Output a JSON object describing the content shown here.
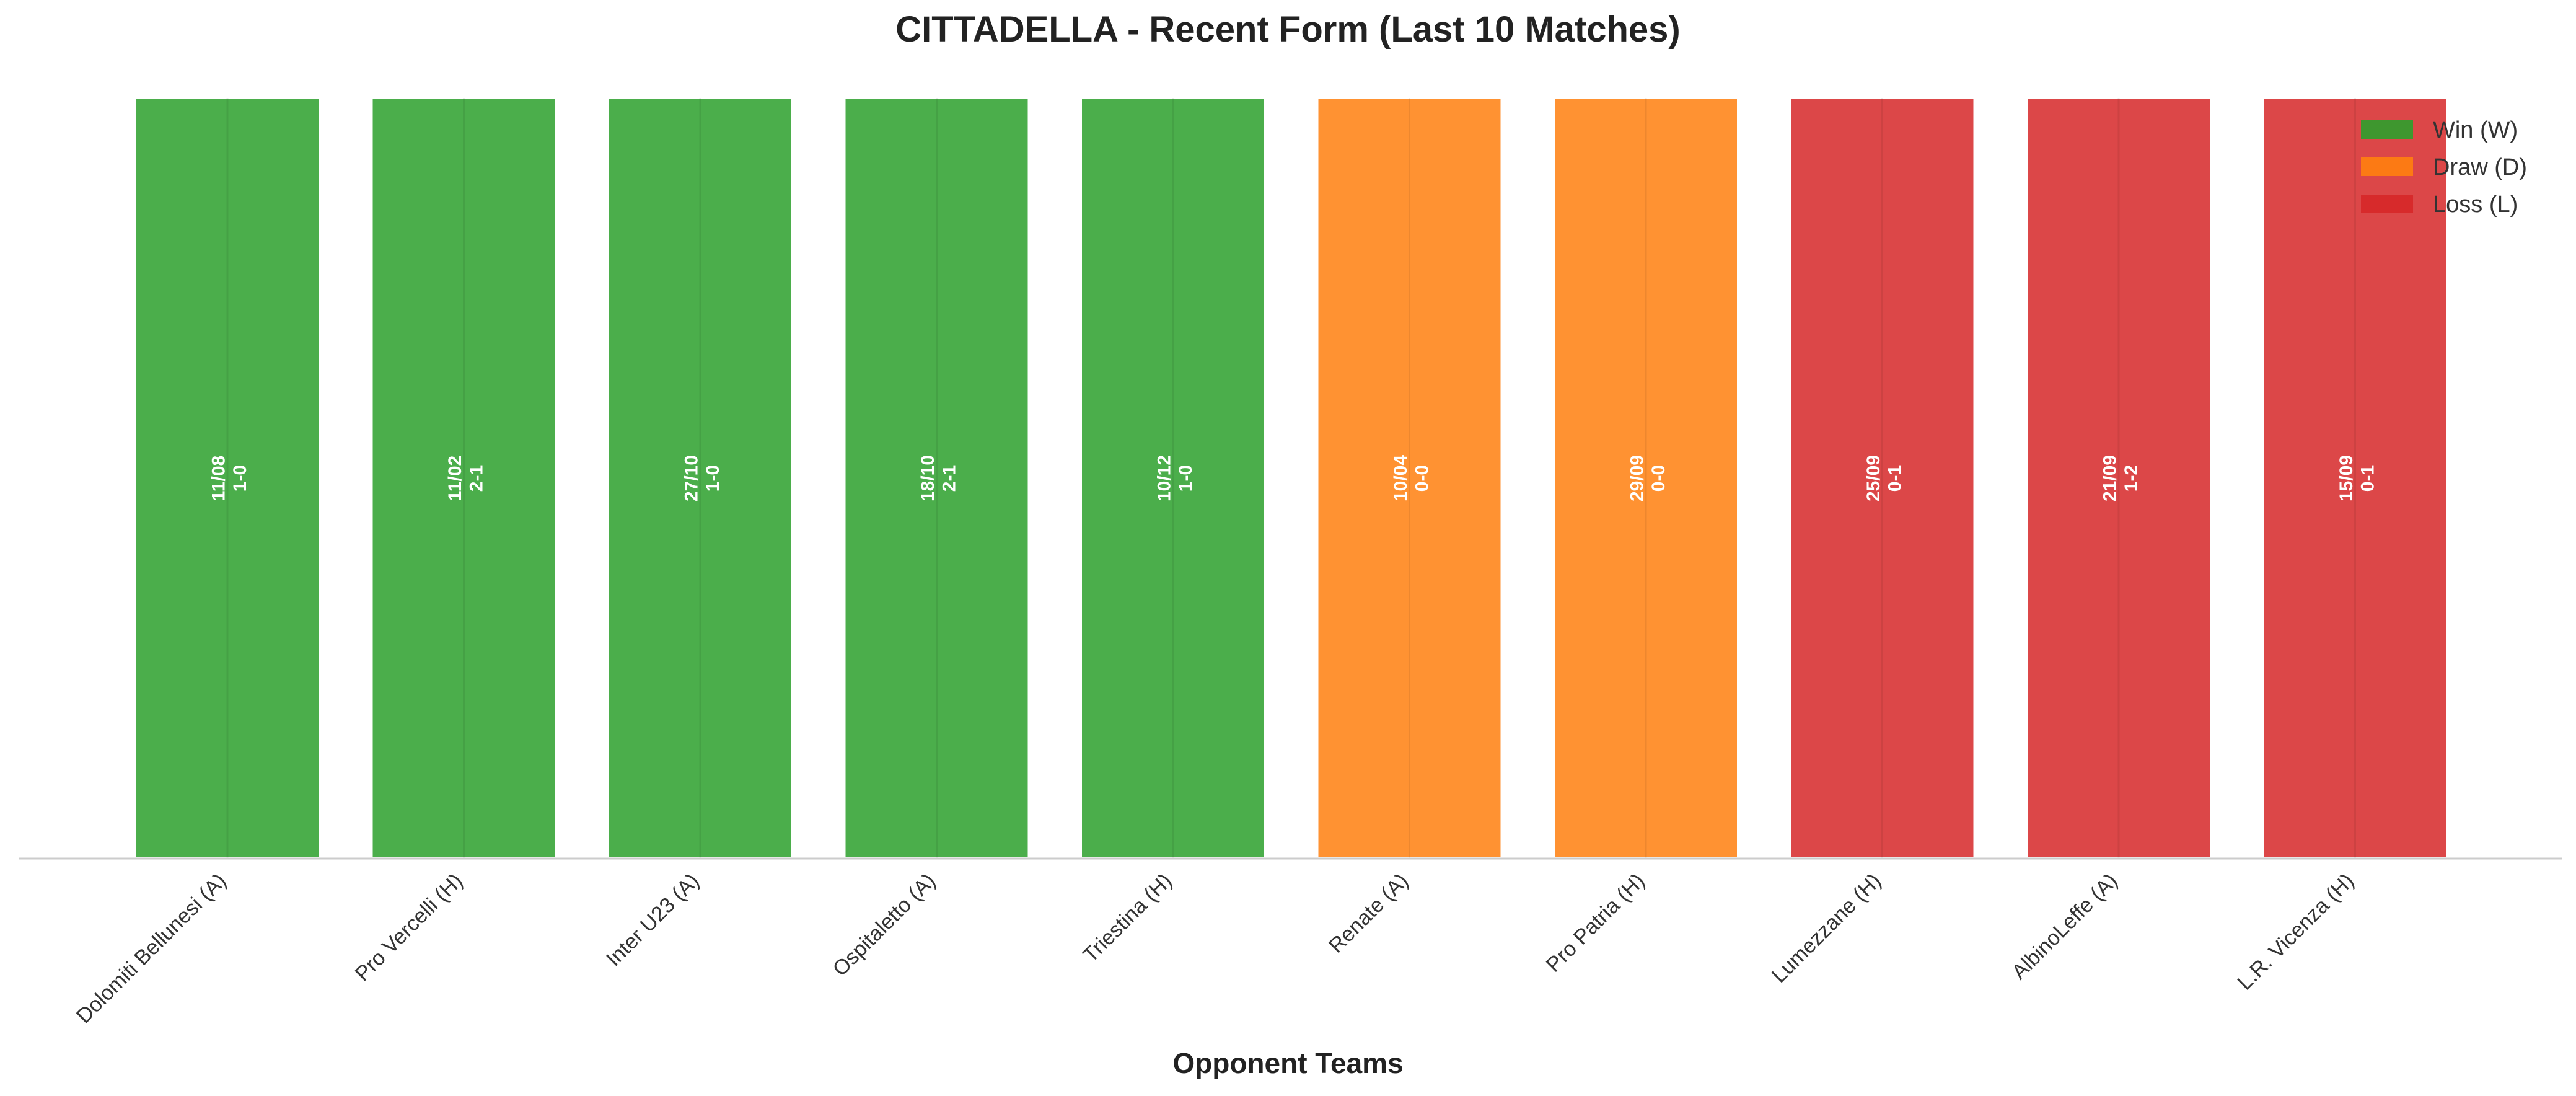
{
  "chart_data": {
    "type": "bar",
    "title": "CITTADELLA - Recent Form (Last 10 Matches)",
    "xlabel": "Opponent Teams",
    "ylabel": "",
    "ylim": [
      0,
      1
    ],
    "grid": false,
    "categories": [
      "Dolomiti Bellunesi (A)",
      "Pro Vercelli (H)",
      "Inter U23 (A)",
      "Ospitaletto (A)",
      "Triestina (H)",
      "Renate (A)",
      "Pro Patria (H)",
      "Lumezzane (H)",
      "AlbinoLeffe (A)",
      "L.R. Vicenza (H)"
    ],
    "values": [
      1,
      1,
      1,
      1,
      1,
      1,
      1,
      1,
      1,
      1
    ],
    "results": [
      "W",
      "W",
      "W",
      "W",
      "W",
      "D",
      "D",
      "L",
      "L",
      "L"
    ],
    "dates": [
      "11/08",
      "11/02",
      "27/10",
      "18/10",
      "10/12",
      "10/04",
      "29/09",
      "25/09",
      "21/09",
      "15/09"
    ],
    "scores": [
      "1-0",
      "2-1",
      "1-0",
      "2-1",
      "1-0",
      "0-0",
      "0-0",
      "0-1",
      "1-2",
      "0-1"
    ],
    "legend": {
      "position": "top-right",
      "entries": [
        {
          "key": "W",
          "label": "Win (W)",
          "color": "#2ca02c"
        },
        {
          "key": "D",
          "label": "Draw (D)",
          "color": "#ff7f0e"
        },
        {
          "key": "L",
          "label": "Loss (L)",
          "color": "#d62728"
        }
      ]
    }
  }
}
